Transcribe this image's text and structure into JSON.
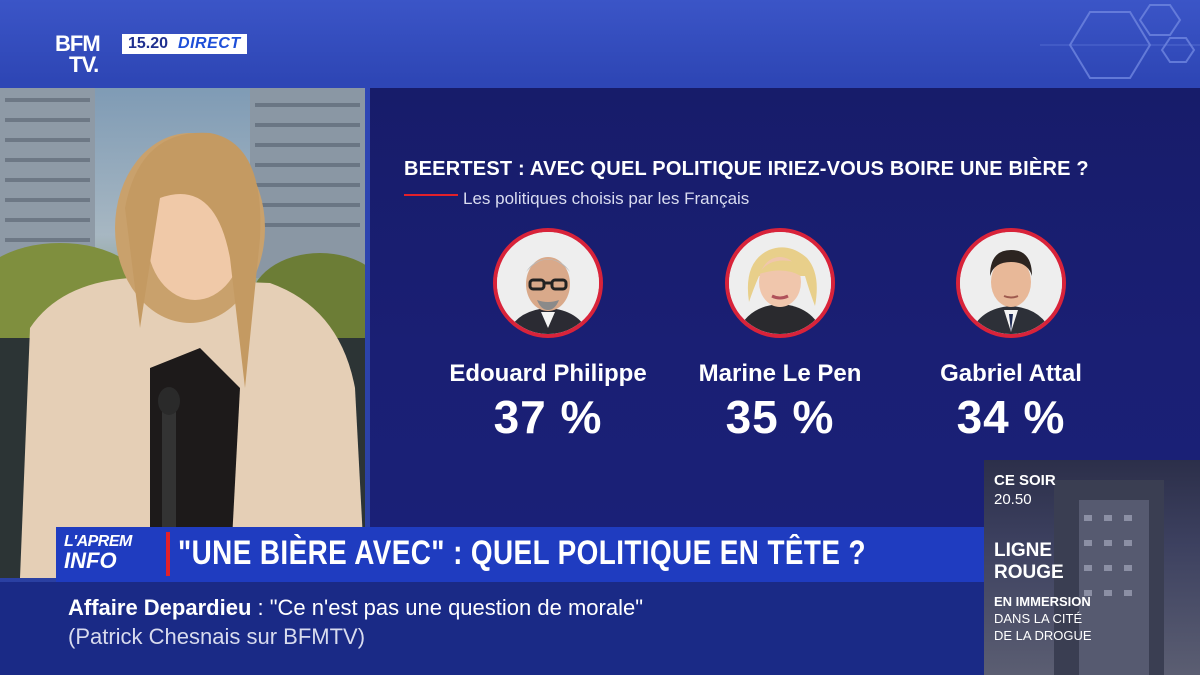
{
  "channel": {
    "logo_line1": "BFM",
    "logo_line2": "TV.",
    "time": "15.20",
    "live": "DIRECT"
  },
  "graphic": {
    "title": "BEERTEST : AVEC QUEL POLITIQUE IRIEZ-VOUS BOIRE UNE BIÈRE ?",
    "subtitle": "Les politiques choisis par les Français",
    "people": [
      {
        "name": "Edouard Philippe",
        "percent": "37 %",
        "value": 37
      },
      {
        "name": "Marine Le Pen",
        "percent": "35 %",
        "value": 35
      },
      {
        "name": "Gabriel Attal",
        "percent": "34 %",
        "value": 34
      }
    ],
    "accent": "#e2202a"
  },
  "lower_third": {
    "show_line1": "L'APREM",
    "show_line2": "INFO",
    "headline": "\"UNE BIÈRE AVEC\" : QUEL POLITIQUE EN TÊTE ?"
  },
  "ticker": {
    "topic": "Affaire Depardieu",
    "separator": " :  ",
    "quote": "\"Ce n'est pas une question de morale\"",
    "source": "(Patrick Chesnais sur BFMTV)"
  },
  "promo": {
    "when": "CE SOIR",
    "time": "20.50",
    "title_line1": "LIGNE",
    "title_line2": "ROUGE",
    "sub_line1": "EN IMMERSION",
    "sub_line2": "DANS LA CITÉ",
    "sub_line3": "DE LA DROGUE"
  }
}
